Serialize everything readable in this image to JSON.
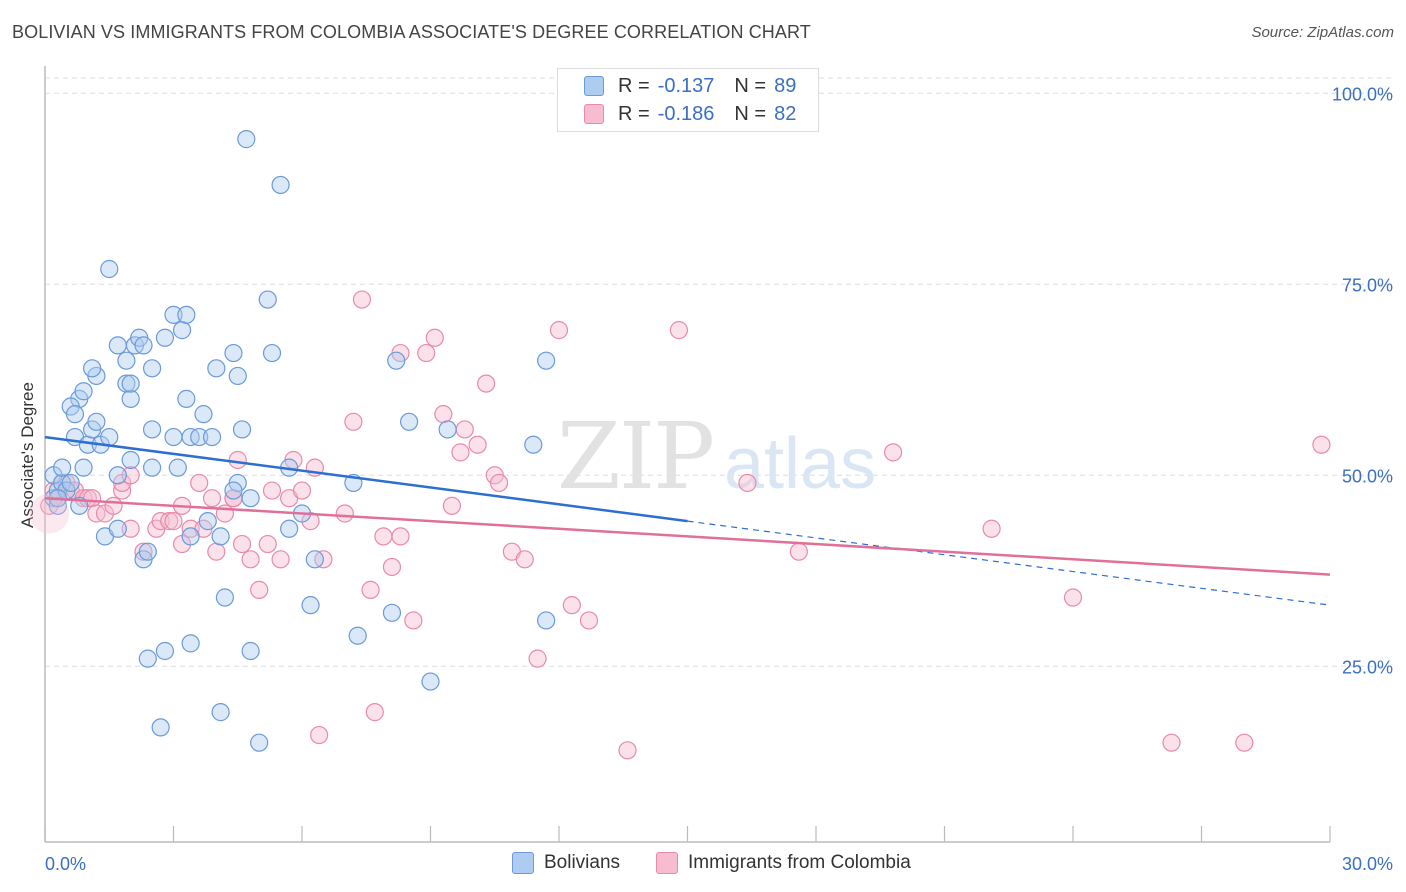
{
  "title": "BOLIVIAN VS IMMIGRANTS FROM COLOMBIA ASSOCIATE'S DEGREE CORRELATION CHART",
  "source": "Source: ZipAtlas.com",
  "watermark": "ZIPatlas",
  "legend_top": [
    {
      "r_label": "R =",
      "r_value": "-0.137",
      "n_label": "N =",
      "n_value": "89"
    },
    {
      "r_label": "R =",
      "r_value": "-0.186",
      "n_label": "N =",
      "n_value": "82"
    }
  ],
  "legend_bottom": [
    "Bolivians",
    "Immigrants from Colombia"
  ],
  "colors": {
    "blue_fill": "#aecbf0",
    "blue_stroke": "#6b9ad8",
    "blue_line": "#2d6fd0",
    "pink_fill": "#f7bcd0",
    "pink_stroke": "#e88aab",
    "pink_line": "#e07099",
    "axis_label": "#3a6fc4",
    "grid": "#dddddd"
  },
  "chart_data": {
    "type": "scatter",
    "ylabel": "Associate's Degree",
    "x_tick_labels": [
      "0.0%",
      "30.0%"
    ],
    "y_tick_labels": [
      "100.0%",
      "75.0%",
      "50.0%",
      "25.0%"
    ],
    "y_tick_values": [
      100,
      75,
      50,
      25
    ],
    "xlim": [
      0,
      30
    ],
    "ylim": [
      2,
      102
    ],
    "grid": true,
    "series": [
      {
        "name": "Bolivians",
        "trend": {
          "x": [
            0,
            15
          ],
          "y": [
            55,
            44
          ],
          "dashed_to": [
            30,
            33
          ]
        },
        "points": [
          [
            0.2,
            47
          ],
          [
            0.3,
            48
          ],
          [
            0.2,
            50
          ],
          [
            0.4,
            49
          ],
          [
            0.5,
            48
          ],
          [
            0.6,
            49
          ],
          [
            0.4,
            51
          ],
          [
            0.3,
            46
          ],
          [
            0.8,
            46
          ],
          [
            0.9,
            51
          ],
          [
            0.7,
            55
          ],
          [
            1.0,
            54
          ],
          [
            1.1,
            56
          ],
          [
            1.2,
            57
          ],
          [
            1.3,
            54
          ],
          [
            1.5,
            55
          ],
          [
            0.8,
            60
          ],
          [
            0.6,
            59
          ],
          [
            0.7,
            58
          ],
          [
            0.9,
            61
          ],
          [
            1.2,
            63
          ],
          [
            1.1,
            64
          ],
          [
            1.7,
            67
          ],
          [
            1.9,
            65
          ],
          [
            2.1,
            67
          ],
          [
            2.2,
            68
          ],
          [
            2.3,
            67
          ],
          [
            2.5,
            64
          ],
          [
            3.0,
            71
          ],
          [
            3.2,
            69
          ],
          [
            2.8,
            68
          ],
          [
            3.3,
            71
          ],
          [
            1.9,
            62
          ],
          [
            2.0,
            60
          ],
          [
            2.0,
            62
          ],
          [
            3.3,
            60
          ],
          [
            3.7,
            58
          ],
          [
            2.5,
            56
          ],
          [
            3.0,
            55
          ],
          [
            3.4,
            55
          ],
          [
            3.6,
            55
          ],
          [
            3.9,
            55
          ],
          [
            2.0,
            52
          ],
          [
            2.5,
            51
          ],
          [
            3.1,
            51
          ],
          [
            1.7,
            50
          ],
          [
            1.4,
            42
          ],
          [
            1.7,
            43
          ],
          [
            2.3,
            39
          ],
          [
            2.4,
            40
          ],
          [
            3.4,
            42
          ],
          [
            3.8,
            44
          ],
          [
            4.1,
            42
          ],
          [
            4.5,
            49
          ],
          [
            4.4,
            48
          ],
          [
            4.6,
            56
          ],
          [
            4.0,
            64
          ],
          [
            4.5,
            63
          ],
          [
            5.2,
            73
          ],
          [
            4.8,
            47
          ],
          [
            5.7,
            43
          ],
          [
            5.7,
            51
          ],
          [
            6.3,
            39
          ],
          [
            6.2,
            33
          ],
          [
            7.2,
            49
          ],
          [
            7.3,
            29
          ],
          [
            8.1,
            32
          ],
          [
            8.2,
            65
          ],
          [
            8.5,
            57
          ],
          [
            9.4,
            56
          ],
          [
            11.4,
            54
          ],
          [
            11.7,
            31
          ],
          [
            11.7,
            65
          ],
          [
            2.4,
            26
          ],
          [
            2.7,
            17
          ],
          [
            2.8,
            27
          ],
          [
            3.4,
            28
          ],
          [
            4.2,
            34
          ],
          [
            4.1,
            19
          ],
          [
            4.8,
            27
          ],
          [
            5.0,
            15
          ],
          [
            9.0,
            23
          ],
          [
            4.7,
            94
          ],
          [
            5.5,
            88
          ],
          [
            1.5,
            77
          ],
          [
            4.4,
            66
          ],
          [
            5.3,
            66
          ],
          [
            6.0,
            45
          ],
          [
            0.3,
            47
          ]
        ]
      },
      {
        "name": "Immigrants from Colombia",
        "trend": {
          "x": [
            0,
            30
          ],
          "y": [
            47,
            37
          ]
        },
        "points": [
          [
            0.1,
            46
          ],
          [
            0.2,
            48
          ],
          [
            0.3,
            47
          ],
          [
            0.4,
            49
          ],
          [
            0.5,
            49
          ],
          [
            0.6,
            48
          ],
          [
            0.7,
            48
          ],
          [
            0.9,
            47
          ],
          [
            1.0,
            47
          ],
          [
            1.1,
            47
          ],
          [
            1.2,
            45
          ],
          [
            1.4,
            45
          ],
          [
            1.6,
            46
          ],
          [
            1.8,
            48
          ],
          [
            1.8,
            49
          ],
          [
            2.0,
            43
          ],
          [
            2.3,
            40
          ],
          [
            2.6,
            43
          ],
          [
            2.7,
            44
          ],
          [
            2.9,
            44
          ],
          [
            3.0,
            44
          ],
          [
            3.2,
            46
          ],
          [
            3.2,
            41
          ],
          [
            3.4,
            43
          ],
          [
            3.7,
            43
          ],
          [
            3.9,
            47
          ],
          [
            4.0,
            40
          ],
          [
            4.2,
            45
          ],
          [
            4.4,
            47
          ],
          [
            4.5,
            52
          ],
          [
            4.6,
            41
          ],
          [
            4.8,
            39
          ],
          [
            5.0,
            35
          ],
          [
            5.2,
            41
          ],
          [
            5.3,
            48
          ],
          [
            5.5,
            39
          ],
          [
            5.7,
            47
          ],
          [
            5.8,
            52
          ],
          [
            6.0,
            48
          ],
          [
            6.2,
            44
          ],
          [
            6.3,
            51
          ],
          [
            6.5,
            39
          ],
          [
            7.0,
            45
          ],
          [
            7.2,
            57
          ],
          [
            7.4,
            73
          ],
          [
            7.6,
            35
          ],
          [
            7.9,
            42
          ],
          [
            8.1,
            38
          ],
          [
            8.3,
            42
          ],
          [
            8.3,
            66
          ],
          [
            8.6,
            31
          ],
          [
            8.9,
            66
          ],
          [
            9.1,
            68
          ],
          [
            9.3,
            58
          ],
          [
            9.5,
            46
          ],
          [
            9.7,
            53
          ],
          [
            9.8,
            56
          ],
          [
            10.1,
            54
          ],
          [
            10.3,
            62
          ],
          [
            10.5,
            50
          ],
          [
            10.6,
            49
          ],
          [
            10.9,
            40
          ],
          [
            11.2,
            39
          ],
          [
            11.5,
            26
          ],
          [
            12.0,
            69
          ],
          [
            12.3,
            33
          ],
          [
            12.7,
            31
          ],
          [
            13.6,
            14
          ],
          [
            14.8,
            69
          ],
          [
            16.4,
            49
          ],
          [
            17.6,
            40
          ],
          [
            19.8,
            53
          ],
          [
            22.1,
            43
          ],
          [
            24.0,
            34
          ],
          [
            26.3,
            15
          ],
          [
            28.0,
            15
          ],
          [
            29.8,
            54
          ],
          [
            6.4,
            16
          ],
          [
            7.7,
            19
          ],
          [
            2.0,
            50
          ],
          [
            3.6,
            49
          ],
          [
            4.4,
            47
          ]
        ]
      }
    ]
  }
}
